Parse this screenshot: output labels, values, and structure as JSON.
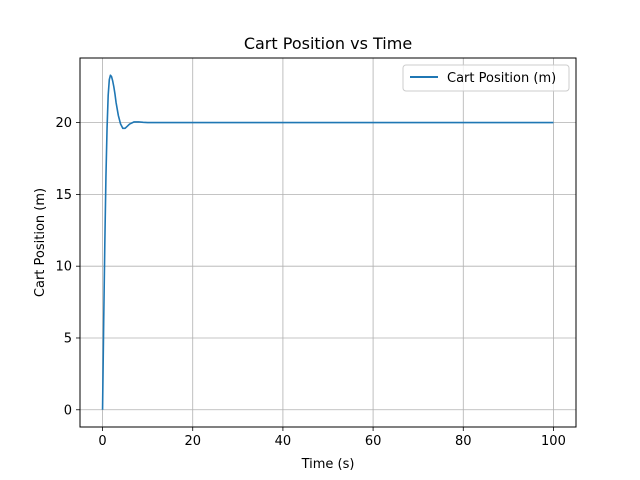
{
  "chart_data": {
    "type": "line",
    "title": "Cart Position vs Time",
    "xlabel": "Time (s)",
    "ylabel": "Cart Position (m)",
    "xlim": [
      -5,
      105
    ],
    "ylim": [
      -1.2,
      24.5
    ],
    "xticks": [
      0,
      20,
      40,
      60,
      80,
      100
    ],
    "yticks": [
      0,
      5,
      10,
      15,
      20
    ],
    "xtick_labels": [
      "0",
      "20",
      "40",
      "60",
      "80",
      "100"
    ],
    "ytick_labels": [
      "0",
      "5",
      "10",
      "15",
      "20"
    ],
    "grid": true,
    "legend_position": "top-right",
    "series": [
      {
        "name": "Cart Position (m)",
        "color": "#1f77b4",
        "x": [
          0,
          0.25,
          0.5,
          0.75,
          1.0,
          1.25,
          1.5,
          1.75,
          2.0,
          2.25,
          2.5,
          2.75,
          3.0,
          3.5,
          4.0,
          4.5,
          5.0,
          5.5,
          6.0,
          7.0,
          8.0,
          9.0,
          10.0,
          12.0,
          15.0,
          20.0,
          30.0,
          40.0,
          50.0,
          60.0,
          70.0,
          80.0,
          90.0,
          100.0
        ],
        "y": [
          0,
          6.0,
          11.5,
          16.2,
          19.6,
          21.9,
          23.0,
          23.3,
          23.2,
          22.9,
          22.5,
          22.0,
          21.4,
          20.5,
          19.9,
          19.6,
          19.6,
          19.75,
          19.9,
          20.05,
          20.05,
          20.02,
          20.0,
          20.0,
          20.0,
          20.0,
          20.0,
          20.0,
          20.0,
          20.0,
          20.0,
          20.0,
          20.0,
          20.0
        ]
      }
    ]
  }
}
